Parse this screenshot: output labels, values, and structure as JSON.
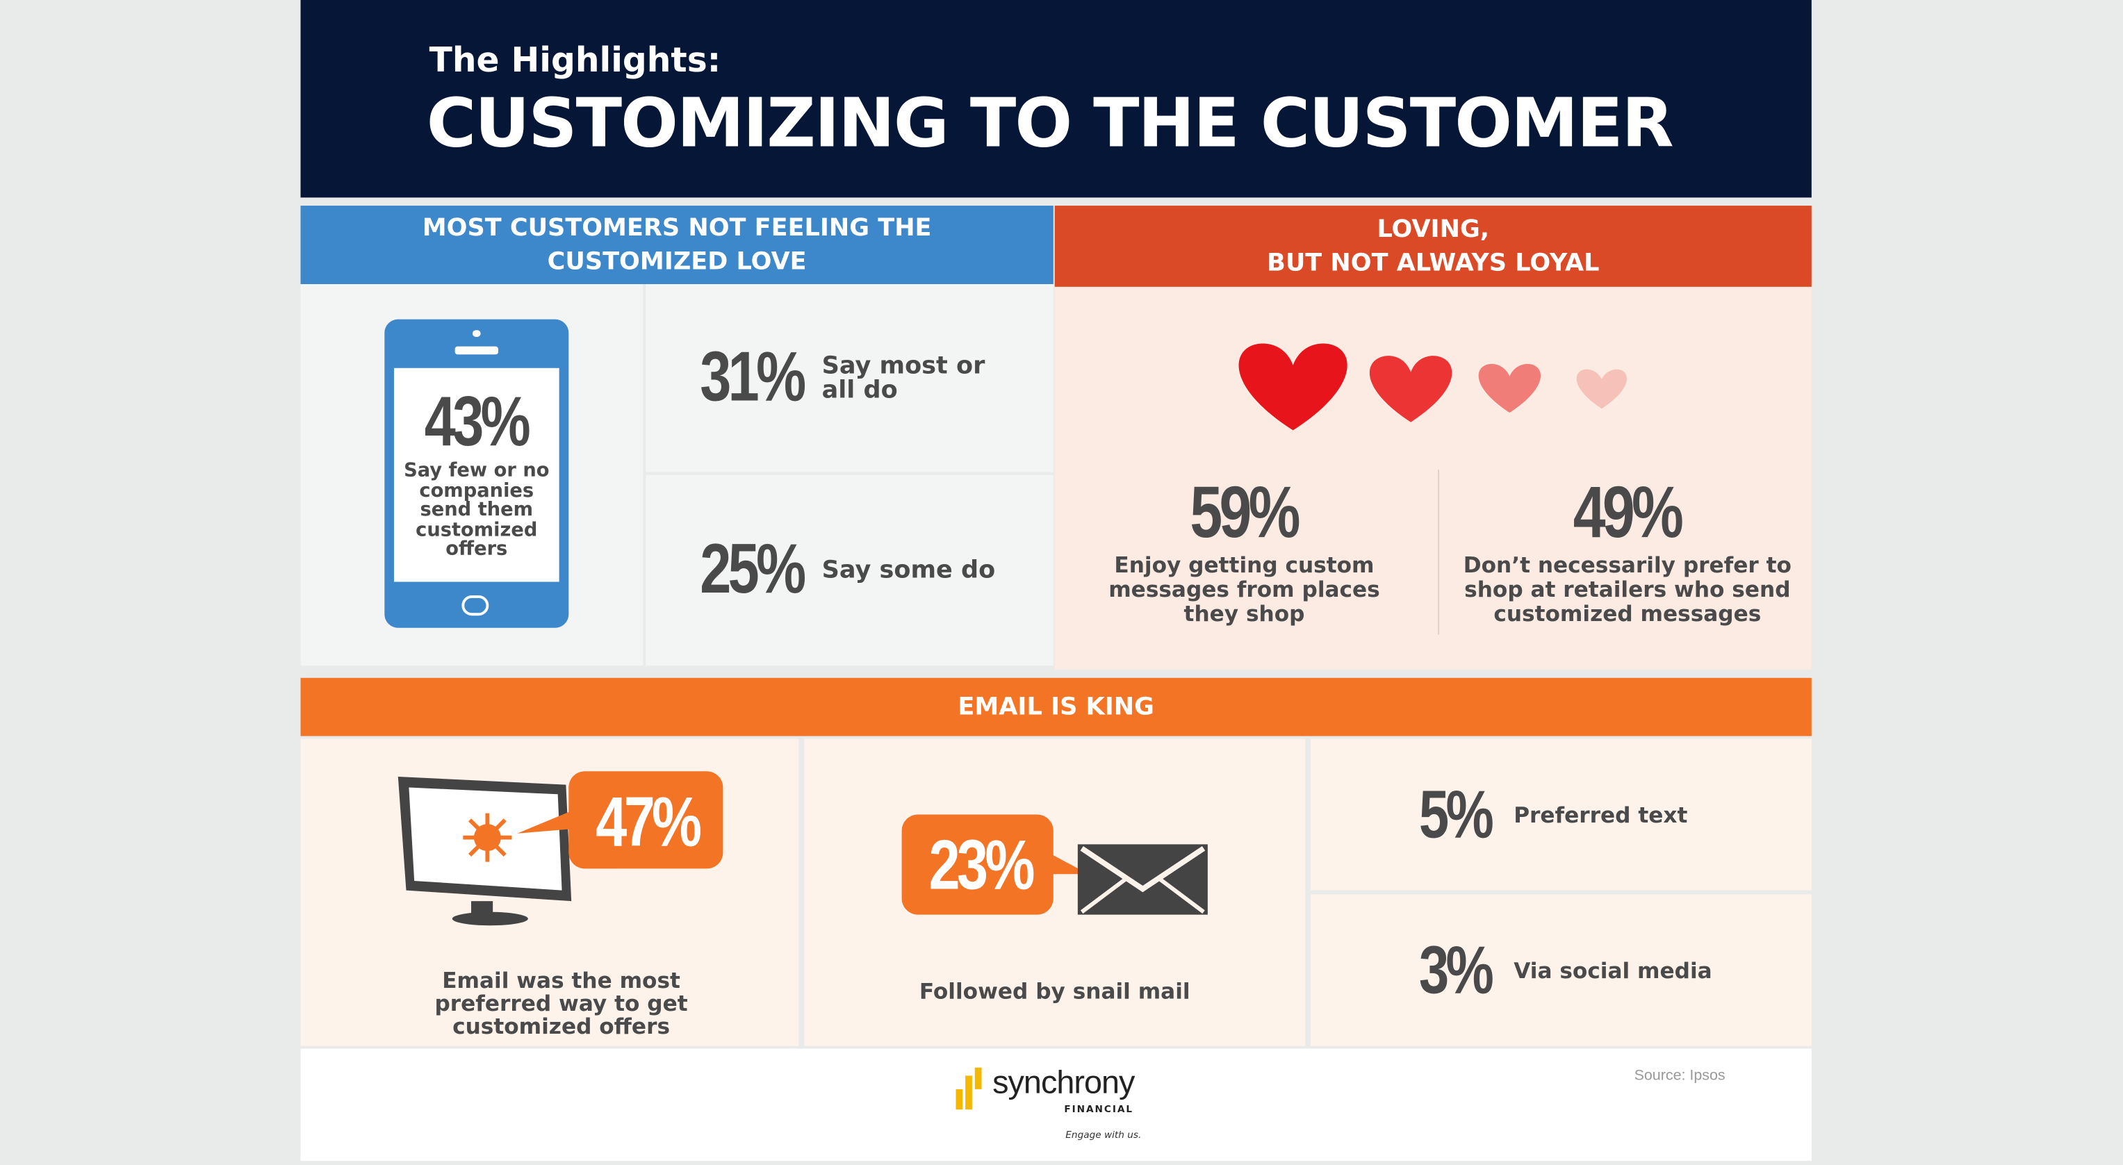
{
  "header": {
    "subtitle": "The Highlights:",
    "title": "CUSTOMIZING TO THE CUSTOMER"
  },
  "section1": {
    "title": "MOST CUSTOMERS NOT FEELING THE CUSTOMIZED LOVE",
    "color": "#3d87cb",
    "phone": {
      "value": "43%",
      "label": "Say few or no companies send them customized offers"
    },
    "stats": [
      {
        "value": "31%",
        "label": "Say most or all do"
      },
      {
        "value": "25%",
        "label": "Say some do"
      }
    ]
  },
  "section2": {
    "title_line1": "LOVING,",
    "title_line2": "BUT NOT ALWAYS LOYAL",
    "color": "#db4a26",
    "hearts": [
      "#e8141b",
      "#ec3434",
      "#f07d77",
      "#f6c1b8"
    ],
    "stats": [
      {
        "value": "59%",
        "label": "Enjoy getting custom messages from places they shop"
      },
      {
        "value": "49%",
        "label": "Don’t necessarily prefer to shop at retailers who send customized messages"
      }
    ]
  },
  "section3": {
    "title": "EMAIL IS KING",
    "color": "#f37424",
    "email": {
      "value": "47%",
      "label": "Email was the most preferred way to get customized offers"
    },
    "mail": {
      "value": "23%",
      "label": "Followed by snail mail"
    },
    "text": {
      "value": "5%",
      "label": "Preferred text"
    },
    "social": {
      "value": "3%",
      "label": "Via social media"
    }
  },
  "footer": {
    "logo": "synchrony",
    "logo_sub": "FINANCIAL",
    "tagline": "Engage with us.",
    "source": "Source: Ipsos"
  }
}
